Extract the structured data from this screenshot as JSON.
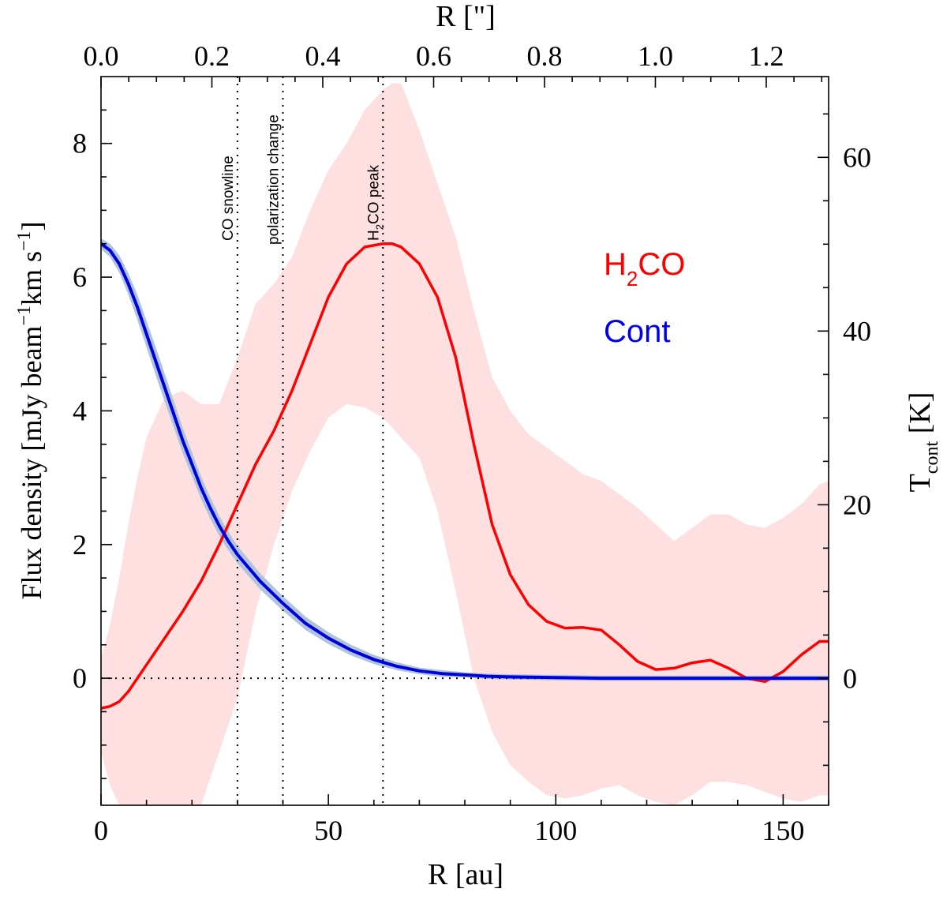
{
  "chart_data": {
    "type": "line",
    "xlabel": "R [au]",
    "x2label": "R [\"]",
    "ylabel": "Flux density [mJy beam",
    "ylabel_sup1": "−1",
    "ylabel_mid": "km s",
    "ylabel_sup2": "−1",
    "ylabel_end": "]",
    "y2label": "T",
    "y2label_sub": "cont",
    "y2label_end": " [K]",
    "xlim": [
      0,
      160
    ],
    "ylim": [
      -1.9,
      9.0
    ],
    "x2lim": [
      0,
      1.3125
    ],
    "y2lim": [
      -14.6,
      69.3
    ],
    "x_ticks": [
      0,
      50,
      100,
      150
    ],
    "x_tick_labels": [
      "0",
      "50",
      "100",
      "150"
    ],
    "y_ticks": [
      0,
      2,
      4,
      6,
      8
    ],
    "y_tick_labels": [
      "0",
      "2",
      "4",
      "6",
      "8"
    ],
    "x2_ticks": [
      0.0,
      0.2,
      0.4,
      0.6,
      0.8,
      1.0,
      1.2
    ],
    "x2_tick_labels": [
      "0.0",
      "0.2",
      "0.4",
      "0.6",
      "0.8",
      "1.0",
      "1.2"
    ],
    "y2_ticks": [
      0,
      20,
      40,
      60
    ],
    "y2_tick_labels": [
      "0",
      "20",
      "40",
      "60"
    ],
    "vlines": [
      {
        "x": 30,
        "label": "CO snowline"
      },
      {
        "x": 40,
        "label": "polarization change"
      },
      {
        "x": 62,
        "label": "H",
        "label_sub": "2",
        "label_end": "CO peak"
      }
    ],
    "hline_y": 0,
    "legend": [
      {
        "text": "H",
        "sub": "2",
        "end": "CO",
        "color": "#ff0000"
      },
      {
        "text": "Cont",
        "sub": "",
        "end": "",
        "color": "#0000ee"
      }
    ],
    "series": [
      {
        "name": "H2CO",
        "color": "#ff0000",
        "band_color": "#ffe0e0",
        "x": [
          0,
          2,
          4,
          6,
          8,
          10,
          14,
          18,
          22,
          26,
          30,
          34,
          38,
          42,
          46,
          50,
          54,
          58,
          62,
          64,
          66,
          70,
          74,
          78,
          82,
          86,
          90,
          94,
          98,
          102,
          106,
          110,
          114,
          118,
          122,
          126,
          130,
          134,
          138,
          142,
          146,
          150,
          154,
          158,
          160
        ],
        "y": [
          -0.45,
          -0.42,
          -0.35,
          -0.2,
          0.0,
          0.2,
          0.6,
          1.0,
          1.45,
          2.0,
          2.6,
          3.2,
          3.7,
          4.3,
          5.0,
          5.7,
          6.2,
          6.45,
          6.5,
          6.5,
          6.45,
          6.2,
          5.7,
          4.8,
          3.5,
          2.3,
          1.55,
          1.1,
          0.85,
          0.75,
          0.76,
          0.72,
          0.5,
          0.25,
          0.13,
          0.15,
          0.23,
          0.27,
          0.15,
          0.0,
          -0.05,
          0.1,
          0.35,
          0.55,
          0.55
        ],
        "band_upper": [
          0.3,
          0.8,
          1.5,
          2.3,
          3.0,
          3.6,
          4.2,
          4.3,
          4.1,
          4.1,
          4.8,
          5.6,
          5.9,
          6.3,
          7.0,
          7.6,
          8.0,
          8.5,
          8.8,
          8.9,
          8.9,
          8.2,
          7.4,
          6.6,
          5.5,
          4.5,
          4.0,
          3.65,
          3.45,
          3.25,
          3.05,
          2.95,
          2.75,
          2.55,
          2.3,
          2.05,
          2.25,
          2.45,
          2.45,
          2.3,
          2.25,
          2.4,
          2.6,
          2.9,
          2.95
        ],
        "band_lower": [
          -1.1,
          -1.6,
          -1.9,
          -1.9,
          -1.9,
          -1.9,
          -1.9,
          -1.9,
          -1.9,
          -1.1,
          -0.3,
          1.0,
          2.0,
          2.8,
          3.4,
          3.9,
          4.1,
          4.05,
          3.9,
          3.75,
          3.6,
          3.3,
          2.5,
          1.3,
          0.0,
          -0.8,
          -1.3,
          -1.55,
          -1.75,
          -1.8,
          -1.75,
          -1.65,
          -1.6,
          -1.75,
          -1.85,
          -1.9,
          -1.75,
          -1.55,
          -1.55,
          -1.6,
          -1.7,
          -1.8,
          -1.85,
          -1.75,
          -1.75
        ]
      },
      {
        "name": "Cont",
        "color": "#0000dd",
        "band_color": "#b0c4de",
        "x": [
          0,
          2,
          4,
          6,
          8,
          10,
          12,
          14,
          16,
          18,
          20,
          22,
          24,
          26,
          28,
          30,
          35,
          40,
          45,
          50,
          55,
          60,
          65,
          70,
          75,
          80,
          85,
          90,
          100,
          110,
          120,
          130,
          140,
          150,
          160
        ],
        "y": [
          6.5,
          6.4,
          6.2,
          5.9,
          5.55,
          5.15,
          4.75,
          4.35,
          3.95,
          3.55,
          3.2,
          2.85,
          2.55,
          2.28,
          2.05,
          1.85,
          1.45,
          1.12,
          0.82,
          0.6,
          0.42,
          0.28,
          0.18,
          0.11,
          0.07,
          0.05,
          0.03,
          0.02,
          0.01,
          0.0,
          0.0,
          0.0,
          0.0,
          0.0,
          0.0
        ],
        "band_halfwidth": [
          0.08,
          0.1,
          0.13,
          0.16,
          0.19,
          0.2,
          0.21,
          0.21,
          0.2,
          0.19,
          0.18,
          0.17,
          0.16,
          0.15,
          0.14,
          0.13,
          0.12,
          0.11,
          0.1,
          0.09,
          0.08,
          0.07,
          0.06,
          0.05,
          0.05,
          0.04,
          0.04,
          0.04,
          0.04,
          0.04,
          0.04,
          0.04,
          0.04,
          0.04,
          0.04
        ]
      }
    ]
  }
}
